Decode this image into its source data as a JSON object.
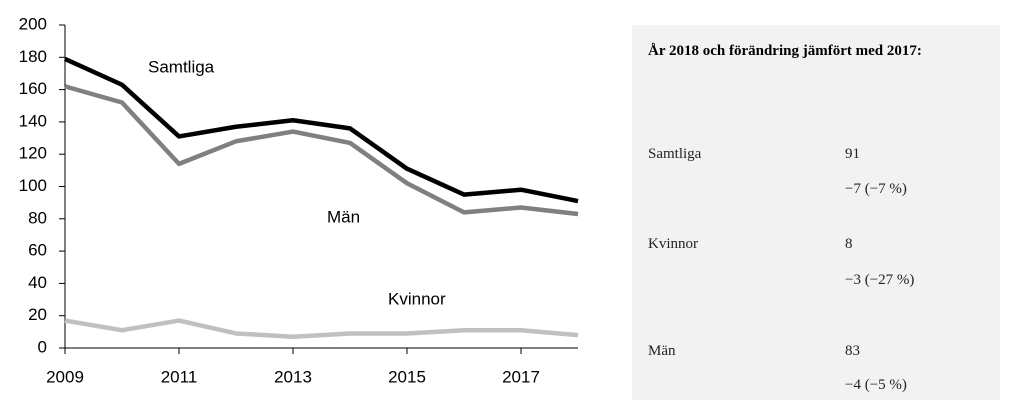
{
  "chart_data": {
    "type": "line",
    "x": [
      2009,
      2010,
      2011,
      2012,
      2013,
      2014,
      2015,
      2016,
      2017,
      2018
    ],
    "series": [
      {
        "name": "Samtliga",
        "color": "#000000",
        "values": [
          179,
          163,
          131,
          137,
          141,
          136,
          111,
          95,
          98,
          91
        ]
      },
      {
        "name": "Män",
        "color": "#808080",
        "values": [
          162,
          152,
          114,
          128,
          134,
          127,
          102,
          84,
          87,
          83
        ]
      },
      {
        "name": "Kvinnor",
        "color": "#c0c0c0",
        "values": [
          17,
          11,
          17,
          9,
          7,
          9,
          9,
          11,
          11,
          8
        ]
      }
    ],
    "xlim": [
      2009,
      2018
    ],
    "xticks": [
      2009,
      2011,
      2013,
      2015,
      2017
    ],
    "ylim": [
      0,
      200
    ],
    "yticks": [
      0,
      20,
      40,
      60,
      80,
      100,
      120,
      140,
      160,
      180,
      200
    ]
  },
  "panel": {
    "title": "År 2018 och förändring jämfört med 2017:",
    "rows": [
      {
        "label": "Samtliga",
        "value": "91",
        "change": "−7 (−7 %)"
      },
      {
        "label": "Kvinnor",
        "value": "8",
        "change": "−3 (−27 %)"
      },
      {
        "label": "Män",
        "value": "83",
        "change": "−4 (−5 %)"
      }
    ]
  }
}
